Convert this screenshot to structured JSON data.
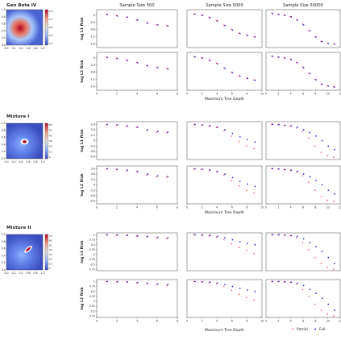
{
  "column_titles": [
    "Sample Size 500",
    "Sample Size 5000",
    "Sample Size 50000"
  ],
  "shared_xlabel": "Maximum Tree Depth",
  "legend": [
    {
      "label": "Partial",
      "color": "#e8253f",
      "marker": "triangle"
    },
    {
      "label": "Full",
      "color": "#2b2bd9",
      "marker": "dot"
    }
  ],
  "colors": {
    "partial": "#e8253f",
    "full": "#2b2bd9"
  },
  "chart_data": [
    {
      "type": "scatter",
      "name": "Gen Beta IV",
      "heatmap": {
        "cmap": "coolwarm",
        "colorbar_ticks": [
          "1.6",
          "1.2",
          "0.8",
          "0.4",
          "0.0"
        ],
        "xticks": [
          "0.0",
          "0.2",
          "0.4",
          "0.6",
          "0.8",
          "1.0"
        ],
        "yticks": [
          "0.0",
          "0.2",
          "0.4",
          "0.6",
          "0.8",
          "1.0"
        ]
      },
      "xlim_by_column": [
        [
          0,
          8
        ],
        [
          0,
          10
        ],
        [
          0,
          12
        ]
      ],
      "xticks_by_column": [
        [
          "0",
          "2",
          "4",
          "6",
          "8"
        ],
        [
          "0",
          "2",
          "4",
          "6",
          "8",
          "10"
        ],
        [
          "0",
          "2",
          "4",
          "6",
          "8",
          "10",
          "12"
        ]
      ],
      "rows": [
        {
          "ylabel": "log L1 Risk",
          "ylim": [
            -1.8,
            0.3
          ],
          "yticks": [
            0.0,
            -0.4,
            -0.8,
            -1.2,
            -1.6
          ],
          "panels": [
            {
              "x": [
                1,
                2,
                3,
                4,
                5,
                6,
                7
              ],
              "partial": [
                0.05,
                -0.02,
                -0.1,
                -0.25,
                -0.42,
                -0.52,
                -0.58
              ],
              "full": [
                0.02,
                -0.05,
                -0.12,
                -0.28,
                -0.45,
                -0.55,
                -0.6
              ]
            },
            {
              "x": [
                1,
                2,
                3,
                4,
                5,
                6,
                7,
                8,
                9
              ],
              "partial": [
                0.08,
                0.0,
                -0.12,
                -0.3,
                -0.55,
                -0.8,
                -1.0,
                -1.1,
                -1.2
              ],
              "full": [
                0.05,
                -0.02,
                -0.15,
                -0.33,
                -0.58,
                -0.83,
                -1.02,
                -1.12,
                -1.22
              ]
            },
            {
              "x": [
                1,
                2,
                3,
                4,
                5,
                6,
                7,
                8,
                9,
                10,
                11
              ],
              "partial": [
                0.1,
                0.05,
                0.0,
                -0.08,
                -0.25,
                -0.5,
                -0.85,
                -1.2,
                -1.45,
                -1.55,
                -1.6
              ],
              "full": [
                0.08,
                0.03,
                -0.02,
                -0.1,
                -0.28,
                -0.55,
                -0.88,
                -1.22,
                -1.47,
                -1.57,
                -1.62
              ]
            }
          ]
        },
        {
          "ylabel": "log L2 Risk",
          "ylim": [
            -1.8,
            0.3
          ],
          "yticks": [
            0.0,
            -0.4,
            -0.8,
            -1.2,
            -1.6
          ],
          "panels": [
            {
              "x": [
                1,
                2,
                3,
                4,
                5,
                6,
                7
              ],
              "partial": [
                0.05,
                -0.02,
                -0.12,
                -0.25,
                -0.42,
                -0.52,
                -0.58
              ],
              "full": [
                0.02,
                -0.05,
                -0.15,
                -0.28,
                -0.45,
                -0.55,
                -0.62
              ]
            },
            {
              "x": [
                1,
                2,
                3,
                4,
                5,
                6,
                7,
                8,
                9
              ],
              "partial": [
                0.08,
                0.0,
                -0.12,
                -0.3,
                -0.55,
                -0.8,
                -1.0,
                -1.12,
                -1.22
              ],
              "full": [
                0.05,
                -0.02,
                -0.15,
                -0.33,
                -0.58,
                -0.83,
                -1.02,
                -1.15,
                -1.25
              ]
            },
            {
              "x": [
                1,
                2,
                3,
                4,
                5,
                6,
                7,
                8,
                9,
                10,
                11
              ],
              "partial": [
                0.1,
                0.05,
                0.0,
                -0.08,
                -0.25,
                -0.5,
                -0.85,
                -1.2,
                -1.45,
                -1.55,
                -1.6
              ],
              "full": [
                0.08,
                0.03,
                -0.02,
                -0.1,
                -0.28,
                -0.55,
                -0.88,
                -1.22,
                -1.47,
                -1.57,
                -1.62
              ]
            }
          ]
        }
      ]
    },
    {
      "type": "scatter",
      "name": "Mixture I",
      "heatmap": {
        "cmap": "coolwarm",
        "colorbar_ticks": [
          "60",
          "50",
          "40",
          "30",
          "20",
          "10",
          "0"
        ],
        "xticks": [
          "0.0",
          "0.2",
          "0.4",
          "0.6",
          "0.8",
          "1.0"
        ],
        "yticks": [
          "0.0",
          "0.2",
          "0.4",
          "0.6",
          "0.8",
          "1.0"
        ]
      },
      "xlim_by_column": [
        [
          0,
          8
        ],
        [
          0,
          10
        ],
        [
          0,
          12
        ]
      ],
      "xticks_by_column": [
        [
          "0",
          "2",
          "4",
          "6",
          "8"
        ],
        [
          "0",
          "2",
          "4",
          "6",
          "8",
          "10"
        ],
        [
          "0",
          "2",
          "4",
          "6",
          "8",
          "10",
          "12"
        ]
      ],
      "rows": [
        {
          "ylabel": "log L1 Risk",
          "ylim": [
            -1.05,
            1.05
          ],
          "yticks": [
            0.9,
            0.6,
            0.3,
            0.0,
            -0.3,
            -0.6,
            -0.9
          ],
          "panels": [
            {
              "x": [
                1,
                2,
                3,
                4,
                5,
                6,
                7
              ],
              "partial": [
                0.88,
                0.85,
                0.8,
                0.72,
                0.55,
                0.45,
                0.43
              ],
              "full": [
                0.9,
                0.87,
                0.82,
                0.75,
                0.6,
                0.5,
                0.47
              ]
            },
            {
              "x": [
                1,
                2,
                3,
                4,
                5,
                6,
                7,
                8,
                9
              ],
              "partial": [
                0.88,
                0.85,
                0.8,
                0.72,
                0.55,
                0.25,
                -0.05,
                -0.3,
                -0.45
              ],
              "full": [
                0.9,
                0.87,
                0.83,
                0.75,
                0.6,
                0.4,
                0.2,
                0.05,
                -0.08
              ]
            },
            {
              "x": [
                1,
                2,
                3,
                4,
                5,
                6,
                7,
                8,
                9,
                10,
                11
              ],
              "partial": [
                0.9,
                0.88,
                0.85,
                0.8,
                0.7,
                0.5,
                0.15,
                -0.3,
                -0.65,
                -0.85,
                -0.92
              ],
              "full": [
                0.9,
                0.88,
                0.85,
                0.82,
                0.75,
                0.6,
                0.45,
                0.25,
                0.0,
                -0.3,
                -0.5
              ]
            }
          ]
        },
        {
          "ylabel": "log L2 Risk",
          "ylim": [
            -1.05,
            1.05
          ],
          "yticks": [
            0.9,
            0.6,
            0.3,
            0.0,
            -0.3,
            -0.6,
            -0.9
          ],
          "panels": [
            {
              "x": [
                1,
                2,
                3,
                4,
                5,
                6,
                7
              ],
              "partial": [
                0.88,
                0.85,
                0.8,
                0.72,
                0.55,
                0.45,
                0.43
              ],
              "full": [
                0.9,
                0.87,
                0.82,
                0.75,
                0.6,
                0.5,
                0.47
              ]
            },
            {
              "x": [
                1,
                2,
                3,
                4,
                5,
                6,
                7,
                8,
                9
              ],
              "partial": [
                0.88,
                0.85,
                0.8,
                0.72,
                0.55,
                0.25,
                -0.05,
                -0.3,
                -0.45
              ],
              "full": [
                0.9,
                0.87,
                0.83,
                0.75,
                0.6,
                0.4,
                0.2,
                0.05,
                -0.08
              ]
            },
            {
              "x": [
                1,
                2,
                3,
                4,
                5,
                6,
                7,
                8,
                9,
                10,
                11
              ],
              "partial": [
                0.9,
                0.88,
                0.85,
                0.8,
                0.7,
                0.5,
                0.15,
                -0.3,
                -0.65,
                -0.85,
                -0.92
              ],
              "full": [
                0.9,
                0.88,
                0.85,
                0.82,
                0.75,
                0.6,
                0.45,
                0.25,
                0.0,
                -0.3,
                -0.5
              ]
            }
          ]
        }
      ]
    },
    {
      "type": "scatter",
      "name": "Mixture II",
      "heatmap": {
        "cmap": "coolwarm",
        "colorbar_ticks": [
          "70",
          "60",
          "50",
          "40",
          "30",
          "20",
          "10",
          "0"
        ],
        "xticks": [
          "0.0",
          "0.2",
          "0.4",
          "0.6",
          "0.8",
          "1.0"
        ],
        "yticks": [
          "0.0",
          "0.2",
          "0.4",
          "0.6",
          "0.8",
          "1.0"
        ]
      },
      "xlim_by_column": [
        [
          0,
          8
        ],
        [
          0,
          10
        ],
        [
          0,
          12
        ]
      ],
      "xticks_by_column": [
        [
          "0",
          "2",
          "4",
          "6",
          "8"
        ],
        [
          "0",
          "2",
          "4",
          "6",
          "8",
          "10"
        ],
        [
          "0",
          "2",
          "4",
          "6",
          "8",
          "10",
          "12"
        ]
      ],
      "rows": [
        {
          "ylabel": "log L1 Risk",
          "ylim": [
            -0.82,
            1.1
          ],
          "yticks": [
            1.0,
            0.75,
            0.5,
            0.25,
            0.0,
            -0.25,
            -0.5,
            -0.75
          ],
          "panels": [
            {
              "x": [
                1,
                2,
                3,
                4,
                5,
                6,
                7
              ],
              "partial": [
                1.0,
                0.98,
                0.97,
                0.93,
                0.9,
                0.85,
                0.8
              ],
              "full": [
                1.0,
                0.99,
                0.98,
                0.95,
                0.92,
                0.88,
                0.85
              ]
            },
            {
              "x": [
                1,
                2,
                3,
                4,
                5,
                6,
                7,
                8,
                9
              ],
              "partial": [
                1.0,
                0.98,
                0.95,
                0.88,
                0.75,
                0.55,
                0.35,
                0.2,
                0.05
              ],
              "full": [
                1.0,
                0.99,
                0.97,
                0.92,
                0.85,
                0.75,
                0.65,
                0.57,
                0.5
              ]
            },
            {
              "x": [
                1,
                2,
                3,
                4,
                5,
                6,
                7,
                8,
                9,
                10,
                11
              ],
              "partial": [
                1.0,
                1.0,
                0.98,
                0.95,
                0.85,
                0.6,
                0.25,
                -0.15,
                -0.45,
                -0.65,
                -0.75
              ],
              "full": [
                1.0,
                1.0,
                0.99,
                0.97,
                0.92,
                0.8,
                0.6,
                0.4,
                0.15,
                -0.15,
                -0.45
              ]
            }
          ]
        },
        {
          "ylabel": "log L2 Risk",
          "ylim": [
            -0.82,
            1.1
          ],
          "yticks": [
            1.0,
            0.75,
            0.5,
            0.25,
            0.0,
            -0.25,
            -0.5,
            -0.75
          ],
          "panels": [
            {
              "x": [
                1,
                2,
                3,
                4,
                5,
                6,
                7
              ],
              "partial": [
                1.0,
                0.98,
                0.97,
                0.93,
                0.9,
                0.85,
                0.8
              ],
              "full": [
                1.0,
                0.99,
                0.98,
                0.95,
                0.92,
                0.88,
                0.85
              ]
            },
            {
              "x": [
                1,
                2,
                3,
                4,
                5,
                6,
                7,
                8,
                9
              ],
              "partial": [
                1.0,
                0.98,
                0.95,
                0.88,
                0.75,
                0.55,
                0.35,
                0.2,
                0.05
              ],
              "full": [
                1.0,
                0.99,
                0.97,
                0.92,
                0.85,
                0.75,
                0.65,
                0.57,
                0.5
              ]
            },
            {
              "x": [
                1,
                2,
                3,
                4,
                5,
                6,
                7,
                8,
                9,
                10,
                11
              ],
              "partial": [
                1.0,
                1.0,
                0.98,
                0.95,
                0.85,
                0.6,
                0.25,
                -0.15,
                -0.45,
                -0.65,
                -0.75
              ],
              "full": [
                1.0,
                1.0,
                0.99,
                0.97,
                0.92,
                0.8,
                0.6,
                0.4,
                0.15,
                -0.15,
                -0.45
              ]
            }
          ]
        }
      ]
    }
  ]
}
